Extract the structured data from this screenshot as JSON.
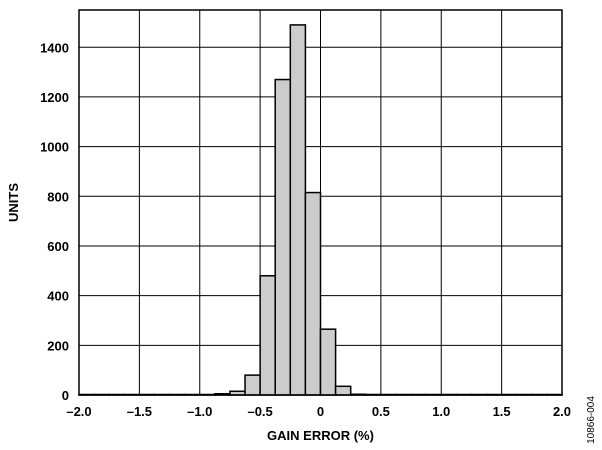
{
  "chart_data": {
    "type": "bar",
    "title": "",
    "xlabel": "GAIN ERROR (%)",
    "ylabel": "UNITS",
    "xlim": [
      -2.0,
      2.0
    ],
    "ylim": [
      0,
      1550
    ],
    "grid": true,
    "x_ticks": [
      {
        "value": -2.0,
        "label": "–2.0"
      },
      {
        "value": -1.5,
        "label": "–1.5"
      },
      {
        "value": -1.0,
        "label": "–1.0"
      },
      {
        "value": -0.5,
        "label": "–0.5"
      },
      {
        "value": 0.0,
        "label": "0"
      },
      {
        "value": 0.5,
        "label": "0.5"
      },
      {
        "value": 1.0,
        "label": "1.0"
      },
      {
        "value": 1.5,
        "label": "1.5"
      },
      {
        "value": 2.0,
        "label": "2.0"
      }
    ],
    "y_ticks": [
      {
        "value": 0,
        "label": "0"
      },
      {
        "value": 200,
        "label": "200"
      },
      {
        "value": 400,
        "label": "400"
      },
      {
        "value": 600,
        "label": "600"
      },
      {
        "value": 800,
        "label": "800"
      },
      {
        "value": 1000,
        "label": "1000"
      },
      {
        "value": 1200,
        "label": "1200"
      },
      {
        "value": 1400,
        "label": "1400"
      }
    ],
    "bin_width": 0.125,
    "bars": [
      {
        "start": -2.0,
        "value": 2
      },
      {
        "start": -1.875,
        "value": 2
      },
      {
        "start": -1.75,
        "value": 2
      },
      {
        "start": -1.625,
        "value": 2
      },
      {
        "start": -1.5,
        "value": 2
      },
      {
        "start": -1.375,
        "value": 2
      },
      {
        "start": -1.25,
        "value": 2
      },
      {
        "start": -1.125,
        "value": 2
      },
      {
        "start": -1.0,
        "value": 2
      },
      {
        "start": -0.875,
        "value": 5
      },
      {
        "start": -0.75,
        "value": 15
      },
      {
        "start": -0.625,
        "value": 80
      },
      {
        "start": -0.5,
        "value": 480
      },
      {
        "start": -0.375,
        "value": 1270
      },
      {
        "start": -0.25,
        "value": 1490
      },
      {
        "start": -0.125,
        "value": 815
      },
      {
        "start": 0.0,
        "value": 265
      },
      {
        "start": 0.125,
        "value": 35
      },
      {
        "start": 0.25,
        "value": 3
      },
      {
        "start": 0.375,
        "value": 2
      },
      {
        "start": 0.5,
        "value": 2
      },
      {
        "start": 0.625,
        "value": 2
      },
      {
        "start": 0.75,
        "value": 2
      },
      {
        "start": 0.875,
        "value": 2
      },
      {
        "start": 1.0,
        "value": 2
      },
      {
        "start": 1.125,
        "value": 2
      },
      {
        "start": 1.25,
        "value": 2
      },
      {
        "start": 1.375,
        "value": 2
      },
      {
        "start": 1.5,
        "value": 2
      },
      {
        "start": 1.625,
        "value": 2
      },
      {
        "start": 1.75,
        "value": 2
      },
      {
        "start": 1.875,
        "value": 2
      }
    ]
  },
  "figure_id": "10866-004"
}
